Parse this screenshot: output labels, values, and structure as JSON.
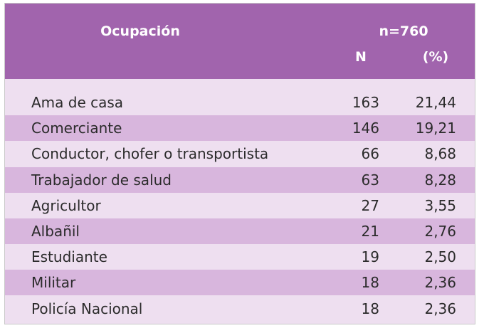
{
  "header": {
    "title": "Ocupación",
    "sample": "n=760",
    "col_n": "N",
    "col_pct": "(%)"
  },
  "table": {
    "rows": [
      [
        "Ama de casa",
        "163",
        "21,44"
      ],
      [
        "Comerciante",
        "146",
        "19,21"
      ],
      [
        "Conductor, chofer o transportista",
        "66",
        "8,68"
      ],
      [
        "Trabajador de salud",
        "63",
        "8,28"
      ],
      [
        "Agricultor",
        "27",
        "3,55"
      ],
      [
        "Albañil",
        "21",
        "2,76"
      ],
      [
        "Estudiante",
        "19",
        "2,50"
      ],
      [
        "Militar",
        "18",
        "2,36"
      ],
      [
        "Policía Nacional",
        "18",
        "2,36"
      ]
    ]
  }
}
